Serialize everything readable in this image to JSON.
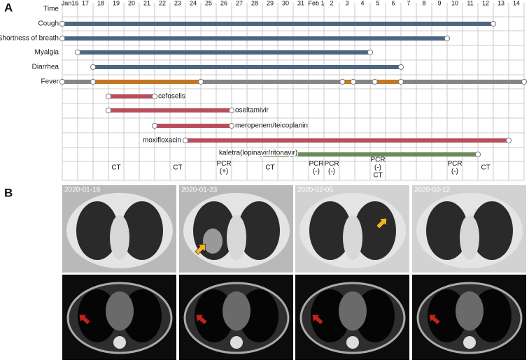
{
  "panel_a": {
    "label": "A",
    "time_label": "Time",
    "dates": [
      "Jan16",
      "17",
      "18",
      "19",
      "20",
      "21",
      "22",
      "23",
      "24",
      "25",
      "26",
      "27",
      "28",
      "29",
      "30",
      "31",
      "Feb 1",
      "2",
      "3",
      "4",
      "5",
      "6",
      "7",
      "8",
      "9",
      "10",
      "11",
      "12",
      "13",
      "14"
    ],
    "symptoms": [
      {
        "label": "Cough",
        "segments": [
          {
            "start": 0,
            "end": 28,
            "color": "#4e657f"
          }
        ]
      },
      {
        "label": "Shortness of breath",
        "segments": [
          {
            "start": 0,
            "end": 25,
            "color": "#4e657f"
          }
        ]
      },
      {
        "label": "Myalgia",
        "segments": [
          {
            "start": 1,
            "end": 20,
            "color": "#4e657f"
          }
        ]
      },
      {
        "label": "Diarrhea",
        "segments": [
          {
            "start": 2,
            "end": 22,
            "color": "#4e657f"
          }
        ]
      },
      {
        "label": "Fever",
        "segments": [
          {
            "start": 0,
            "end": 2,
            "color": "#858585"
          },
          {
            "start": 2,
            "end": 9,
            "color": "#c27623"
          },
          {
            "start": 9,
            "end": 18.2,
            "color": "#858585"
          },
          {
            "start": 18.2,
            "end": 18.9,
            "color": "#c27623"
          },
          {
            "start": 18.9,
            "end": 20.3,
            "color": "#858585"
          },
          {
            "start": 20.3,
            "end": 22,
            "color": "#c27623"
          },
          {
            "start": 22,
            "end": 30,
            "color": "#858585"
          }
        ]
      }
    ],
    "drugs": [
      {
        "label": "cefoselis",
        "start": 3,
        "end": 6,
        "color": "#b84e5c",
        "label_side": "right"
      },
      {
        "label": "oseltamivir",
        "start": 3,
        "end": 11,
        "color": "#b84e5c",
        "label_side": "right"
      },
      {
        "label": "meropenem/teicoplanin",
        "start": 6,
        "end": 11,
        "color": "#b84e5c",
        "label_side": "right"
      },
      {
        "label": "moxifloxacin",
        "start": 8,
        "end": 29,
        "color": "#b84e5c",
        "label_side": "left"
      },
      {
        "label": "kaletra(lopinavir/ritonavir)",
        "start": 13,
        "end": 27,
        "color": "#6b8a56",
        "label_side": "over"
      }
    ],
    "events": [
      {
        "day": 3,
        "lines": [
          "CT"
        ]
      },
      {
        "day": 7,
        "lines": [
          "CT"
        ]
      },
      {
        "day": 10,
        "lines": [
          "PCR",
          "(+)"
        ]
      },
      {
        "day": 13,
        "lines": [
          "CT"
        ]
      },
      {
        "day": 16,
        "lines": [
          "PCR",
          "(-)"
        ]
      },
      {
        "day": 17,
        "lines": [
          "PCR",
          "(-)"
        ]
      },
      {
        "day": 20,
        "lines": [
          "PCR",
          "(-)",
          "CT"
        ]
      },
      {
        "day": 25,
        "lines": [
          "PCR",
          "(-)"
        ]
      },
      {
        "day": 27,
        "lines": [
          "CT"
        ]
      }
    ]
  },
  "panel_b": {
    "label": "B",
    "images": [
      {
        "date": "2020-01-19",
        "lung_arrow": false
      },
      {
        "date": "2020-01-23",
        "lung_arrow": true
      },
      {
        "date": "2020-02-05",
        "lung_arrow": true
      },
      {
        "date": "2020-02-12",
        "lung_arrow": false
      }
    ]
  }
}
